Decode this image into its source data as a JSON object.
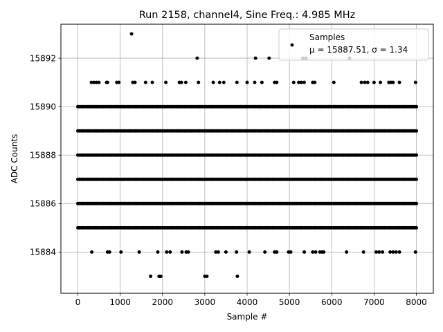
{
  "chart_data": {
    "type": "scatter",
    "title": "Run 2158, channel4, Sine Freq.: 4.985 MHz",
    "xlabel": "Sample #",
    "ylabel": "ADC Counts",
    "xlim": [
      -400,
      8400
    ],
    "ylim": [
      15882.3,
      15893.4
    ],
    "xticks": [
      0,
      1000,
      2000,
      3000,
      4000,
      5000,
      6000,
      7000,
      8000
    ],
    "yticks": [
      15884,
      15886,
      15888,
      15890,
      15892
    ],
    "grid": true,
    "legend": {
      "placement": "top-right",
      "entries": [
        "Samples",
        "μ = 15887.51, σ = 1.34"
      ]
    },
    "marker_color": "#000000",
    "series": [
      {
        "name": "Samples",
        "dense_levels": [
          15885,
          15886,
          15887,
          15888,
          15889,
          15890
        ],
        "dense_x_range": [
          0,
          8000
        ],
        "points": [
          [
            1270,
            15893
          ],
          [
            2820,
            15892
          ],
          [
            4200,
            15892
          ],
          [
            4520,
            15892
          ],
          [
            5320,
            15892
          ],
          [
            5390,
            15892
          ],
          [
            6420,
            15892
          ],
          [
            320,
            15891
          ],
          [
            380,
            15891
          ],
          [
            440,
            15891
          ],
          [
            500,
            15891
          ],
          [
            680,
            15891
          ],
          [
            700,
            15891
          ],
          [
            920,
            15891
          ],
          [
            970,
            15891
          ],
          [
            1300,
            15891
          ],
          [
            1350,
            15891
          ],
          [
            1600,
            15891
          ],
          [
            1760,
            15891
          ],
          [
            2080,
            15891
          ],
          [
            2400,
            15891
          ],
          [
            2450,
            15891
          ],
          [
            2550,
            15891
          ],
          [
            2850,
            15891
          ],
          [
            3200,
            15891
          ],
          [
            3350,
            15891
          ],
          [
            3450,
            15891
          ],
          [
            3760,
            15891
          ],
          [
            4000,
            15891
          ],
          [
            4180,
            15891
          ],
          [
            4350,
            15891
          ],
          [
            4650,
            15891
          ],
          [
            4700,
            15891
          ],
          [
            5100,
            15891
          ],
          [
            5220,
            15891
          ],
          [
            5280,
            15891
          ],
          [
            5350,
            15891
          ],
          [
            5550,
            15891
          ],
          [
            5600,
            15891
          ],
          [
            6050,
            15891
          ],
          [
            6700,
            15891
          ],
          [
            6780,
            15891
          ],
          [
            6850,
            15891
          ],
          [
            7000,
            15891
          ],
          [
            7150,
            15891
          ],
          [
            7350,
            15891
          ],
          [
            7400,
            15891
          ],
          [
            7450,
            15891
          ],
          [
            7600,
            15891
          ],
          [
            7980,
            15891
          ],
          [
            330,
            15884
          ],
          [
            700,
            15884
          ],
          [
            750,
            15884
          ],
          [
            1020,
            15884
          ],
          [
            1450,
            15884
          ],
          [
            1890,
            15884
          ],
          [
            2100,
            15884
          ],
          [
            2180,
            15884
          ],
          [
            2460,
            15884
          ],
          [
            2560,
            15884
          ],
          [
            2610,
            15884
          ],
          [
            3260,
            15884
          ],
          [
            3320,
            15884
          ],
          [
            3500,
            15884
          ],
          [
            3750,
            15884
          ],
          [
            4050,
            15884
          ],
          [
            4420,
            15884
          ],
          [
            4650,
            15884
          ],
          [
            4700,
            15884
          ],
          [
            4980,
            15884
          ],
          [
            5030,
            15884
          ],
          [
            5350,
            15884
          ],
          [
            5550,
            15884
          ],
          [
            5620,
            15884
          ],
          [
            5720,
            15884
          ],
          [
            5770,
            15884
          ],
          [
            5810,
            15884
          ],
          [
            6350,
            15884
          ],
          [
            6750,
            15884
          ],
          [
            7050,
            15884
          ],
          [
            7120,
            15884
          ],
          [
            7200,
            15884
          ],
          [
            7380,
            15884
          ],
          [
            7450,
            15884
          ],
          [
            7520,
            15884
          ],
          [
            7600,
            15884
          ],
          [
            7980,
            15884
          ],
          [
            1720,
            15883
          ],
          [
            1920,
            15883
          ],
          [
            1960,
            15883
          ],
          [
            3000,
            15883
          ],
          [
            3050,
            15883
          ],
          [
            3770,
            15883
          ]
        ]
      }
    ]
  }
}
